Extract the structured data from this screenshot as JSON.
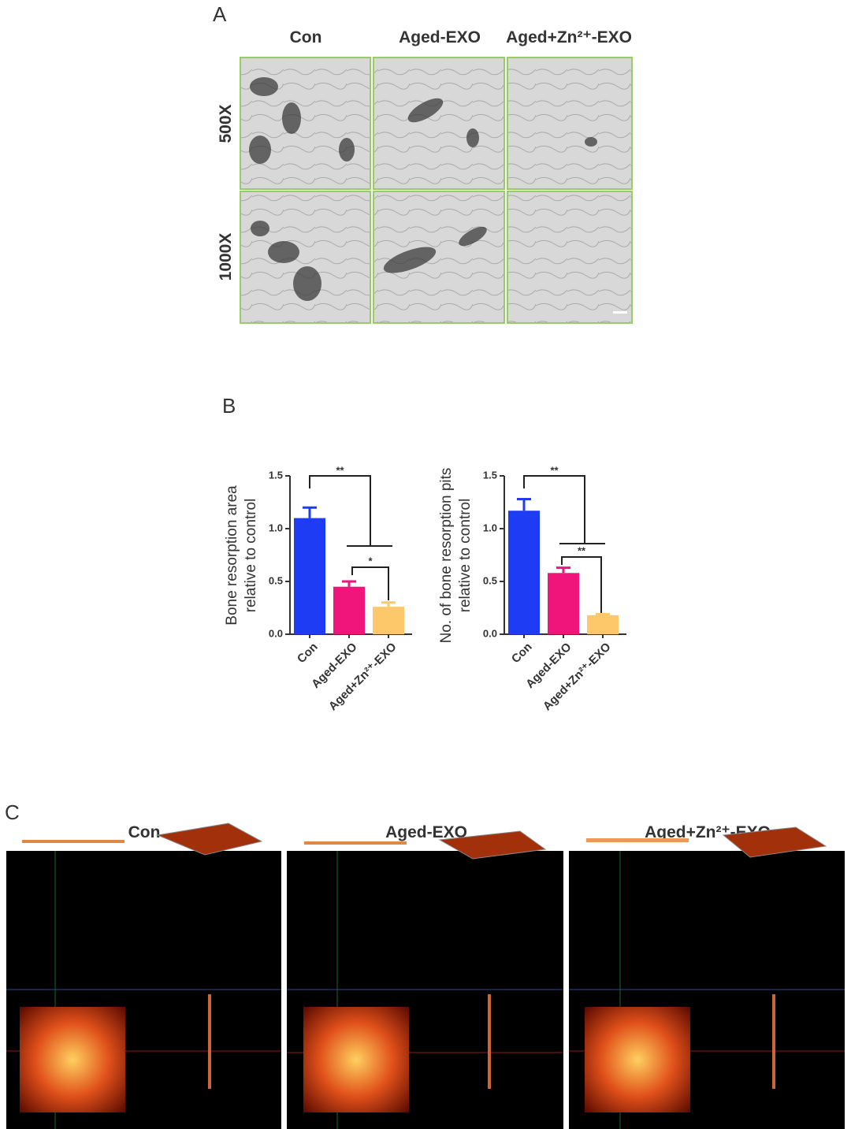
{
  "panel_a": {
    "label": "A",
    "columns": [
      "Con",
      "Aged-EXO",
      "Aged+Zn²⁺-EXO"
    ],
    "rows": [
      "500X",
      "1000X"
    ]
  },
  "panel_b": {
    "label": "B"
  },
  "panel_c": {
    "label": "C",
    "columns": [
      "Con",
      "Aged-EXO",
      "Aged+Zn²⁺-EXO"
    ]
  },
  "chart_data": [
    {
      "type": "bar",
      "ylabel": [
        "Bone resorption area",
        "relative to control"
      ],
      "categories": [
        "Con",
        "Aged-EXO",
        "Aged+Zn²⁺-EXO"
      ],
      "values": [
        1.1,
        0.45,
        0.26
      ],
      "errors": [
        0.1,
        0.05,
        0.04
      ],
      "colors": [
        "#1f3cf5",
        "#f0157a",
        "#fdc86a"
      ],
      "ylim": [
        0,
        1.5
      ],
      "yticks": [
        {
          "value": 0,
          "label": "0.0"
        },
        0.5,
        {
          "value": 1,
          "label": "1.0"
        },
        1.5
      ],
      "significance": [
        "**",
        "*"
      ]
    },
    {
      "type": "bar",
      "ylabel": [
        "No. of bone resorption pits",
        "relative to control"
      ],
      "categories": [
        "Con",
        "Aged-EXO",
        "Aged+Zn²⁺-EXO"
      ],
      "values": [
        1.17,
        0.58,
        0.18
      ],
      "errors": [
        0.11,
        0.05,
        0.01
      ],
      "colors": [
        "#1f3cf5",
        "#f0157a",
        "#fdc86a"
      ],
      "ylim": [
        0,
        1.5
      ],
      "yticks": [
        {
          "value": 0,
          "label": "0.0"
        },
        0.5,
        {
          "value": 1,
          "label": "1.0"
        },
        1.5
      ],
      "significance": [
        "**",
        "**"
      ]
    }
  ]
}
